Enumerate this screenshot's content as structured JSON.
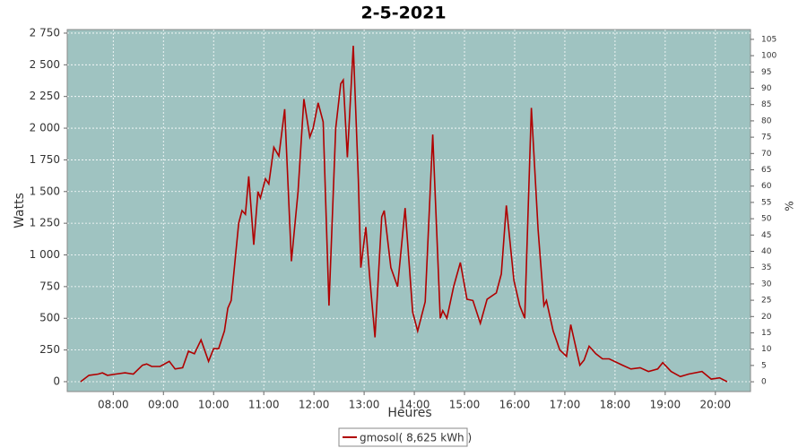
{
  "chart_data": {
    "type": "line",
    "title": "2-5-2021",
    "xlabel": "Heures",
    "ylabel": "Watts",
    "y2label": "%",
    "x": [
      "07:21",
      "07:31",
      "07:42",
      "07:47",
      "07:53",
      "08:03",
      "08:14",
      "08:24",
      "08:35",
      "08:40",
      "08:46",
      "08:56",
      "09:07",
      "09:14",
      "09:23",
      "09:30",
      "09:37",
      "09:45",
      "09:54",
      "10:00",
      "10:06",
      "10:13",
      "10:17",
      "10:21",
      "10:30",
      "10:34",
      "10:38",
      "10:42",
      "10:48",
      "10:53",
      "10:56",
      "11:02",
      "11:06",
      "11:12",
      "11:18",
      "11:25",
      "11:33",
      "11:41",
      "11:48",
      "11:55",
      "11:59",
      "12:05",
      "12:11",
      "12:18",
      "12:26",
      "12:32",
      "12:35",
      "12:40",
      "12:47",
      "12:53",
      "12:56",
      "13:02",
      "13:07",
      "13:13",
      "13:21",
      "13:24",
      "13:32",
      "13:40",
      "13:49",
      "13:58",
      "14:04",
      "14:13",
      "14:22",
      "14:31",
      "14:34",
      "14:39",
      "14:47",
      "14:55",
      "15:03",
      "15:10",
      "15:19",
      "15:27",
      "15:38",
      "15:44",
      "15:50",
      "15:59",
      "16:06",
      "16:12",
      "16:20",
      "16:28",
      "16:35",
      "16:38",
      "16:46",
      "16:54",
      "17:02",
      "17:07",
      "17:18",
      "17:23",
      "17:29",
      "17:37",
      "17:45",
      "17:53",
      "18:09",
      "18:19",
      "18:30",
      "18:40",
      "18:51",
      "18:57",
      "19:07",
      "19:18",
      "19:28",
      "19:44",
      "19:55",
      "20:05",
      "20:14"
    ],
    "series": [
      {
        "name": "gmosol( 8,625 kWh )",
        "color": "#b00000",
        "values": [
          0,
          50,
          60,
          70,
          50,
          60,
          70,
          60,
          130,
          140,
          120,
          120,
          160,
          100,
          110,
          240,
          220,
          330,
          160,
          260,
          260,
          400,
          580,
          640,
          1250,
          1350,
          1320,
          1620,
          1080,
          1500,
          1450,
          1600,
          1560,
          1850,
          1780,
          2150,
          950,
          1500,
          2230,
          1930,
          2000,
          2200,
          2050,
          600,
          2000,
          2350,
          2380,
          1770,
          2650,
          1600,
          900,
          1220,
          800,
          350,
          1300,
          1350,
          900,
          750,
          1370,
          550,
          400,
          630,
          1950,
          500,
          560,
          500,
          750,
          940,
          650,
          640,
          460,
          650,
          700,
          850,
          1390,
          800,
          600,
          500,
          2160,
          1200,
          600,
          640,
          400,
          250,
          200,
          450,
          130,
          170,
          280,
          220,
          180,
          180,
          130,
          100,
          110,
          80,
          100,
          150,
          80,
          40,
          60,
          80,
          20,
          30,
          0
        ]
      }
    ],
    "xlim": [
      "07:05",
      "20:42"
    ],
    "xticks": [
      "08:00",
      "09:00",
      "10:00",
      "11:00",
      "12:00",
      "13:00",
      "14:00",
      "15:00",
      "16:00",
      "17:00",
      "18:00",
      "19:00",
      "20:00"
    ],
    "ylim": [
      -78,
      2778
    ],
    "yticks": [
      0,
      250,
      500,
      750,
      {
        "value": 1000,
        "label": "1 000"
      },
      {
        "value": 1250,
        "label": "1 250"
      },
      {
        "value": 1500,
        "label": "1 500"
      },
      {
        "value": 1750,
        "label": "1 750"
      },
      {
        "value": 2000,
        "label": "2 000"
      },
      {
        "value": 2250,
        "label": "2 250"
      },
      {
        "value": 2500,
        "label": "2 500"
      },
      {
        "value": 2750,
        "label": "2 750"
      }
    ],
    "y2lim": [
      -3,
      108
    ],
    "y2ticks": [
      0,
      5,
      10,
      15,
      20,
      25,
      30,
      35,
      40,
      45,
      50,
      55,
      60,
      65,
      70,
      75,
      80,
      85,
      90,
      95,
      100,
      105
    ],
    "grid": true,
    "plot_background": "#9fc3c1",
    "legend": "bottom"
  }
}
